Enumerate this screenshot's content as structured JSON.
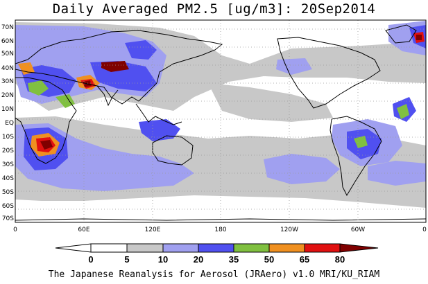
{
  "title": "Daily Averaged PM2.5 [ug/m3]: 20Sep2014",
  "footer": "The Japanese Reanalysis for Aerosol (JRAero) v1.0 MRI/KU_RIAM",
  "map": {
    "lon_ticks": [
      "0",
      "60E",
      "120E",
      "180",
      "120W",
      "60W",
      "0"
    ],
    "lat_ticks": [
      "70N",
      "60N",
      "50N",
      "40N",
      "30N",
      "20N",
      "10N",
      "EQ",
      "10S",
      "20S",
      "30S",
      "40S",
      "50S",
      "60S",
      "70S"
    ],
    "ocean_color": "#ffffff",
    "coast_color": "#000000",
    "grid_color": "#999999"
  },
  "colorbar": {
    "levels": [
      "0",
      "5",
      "10",
      "20",
      "35",
      "50",
      "65",
      "80"
    ],
    "colors": [
      "#ffffff",
      "#c8c8c8",
      "#a0a0f0",
      "#5050f0",
      "#80c040",
      "#f09020",
      "#e01010",
      "#800000"
    ]
  }
}
